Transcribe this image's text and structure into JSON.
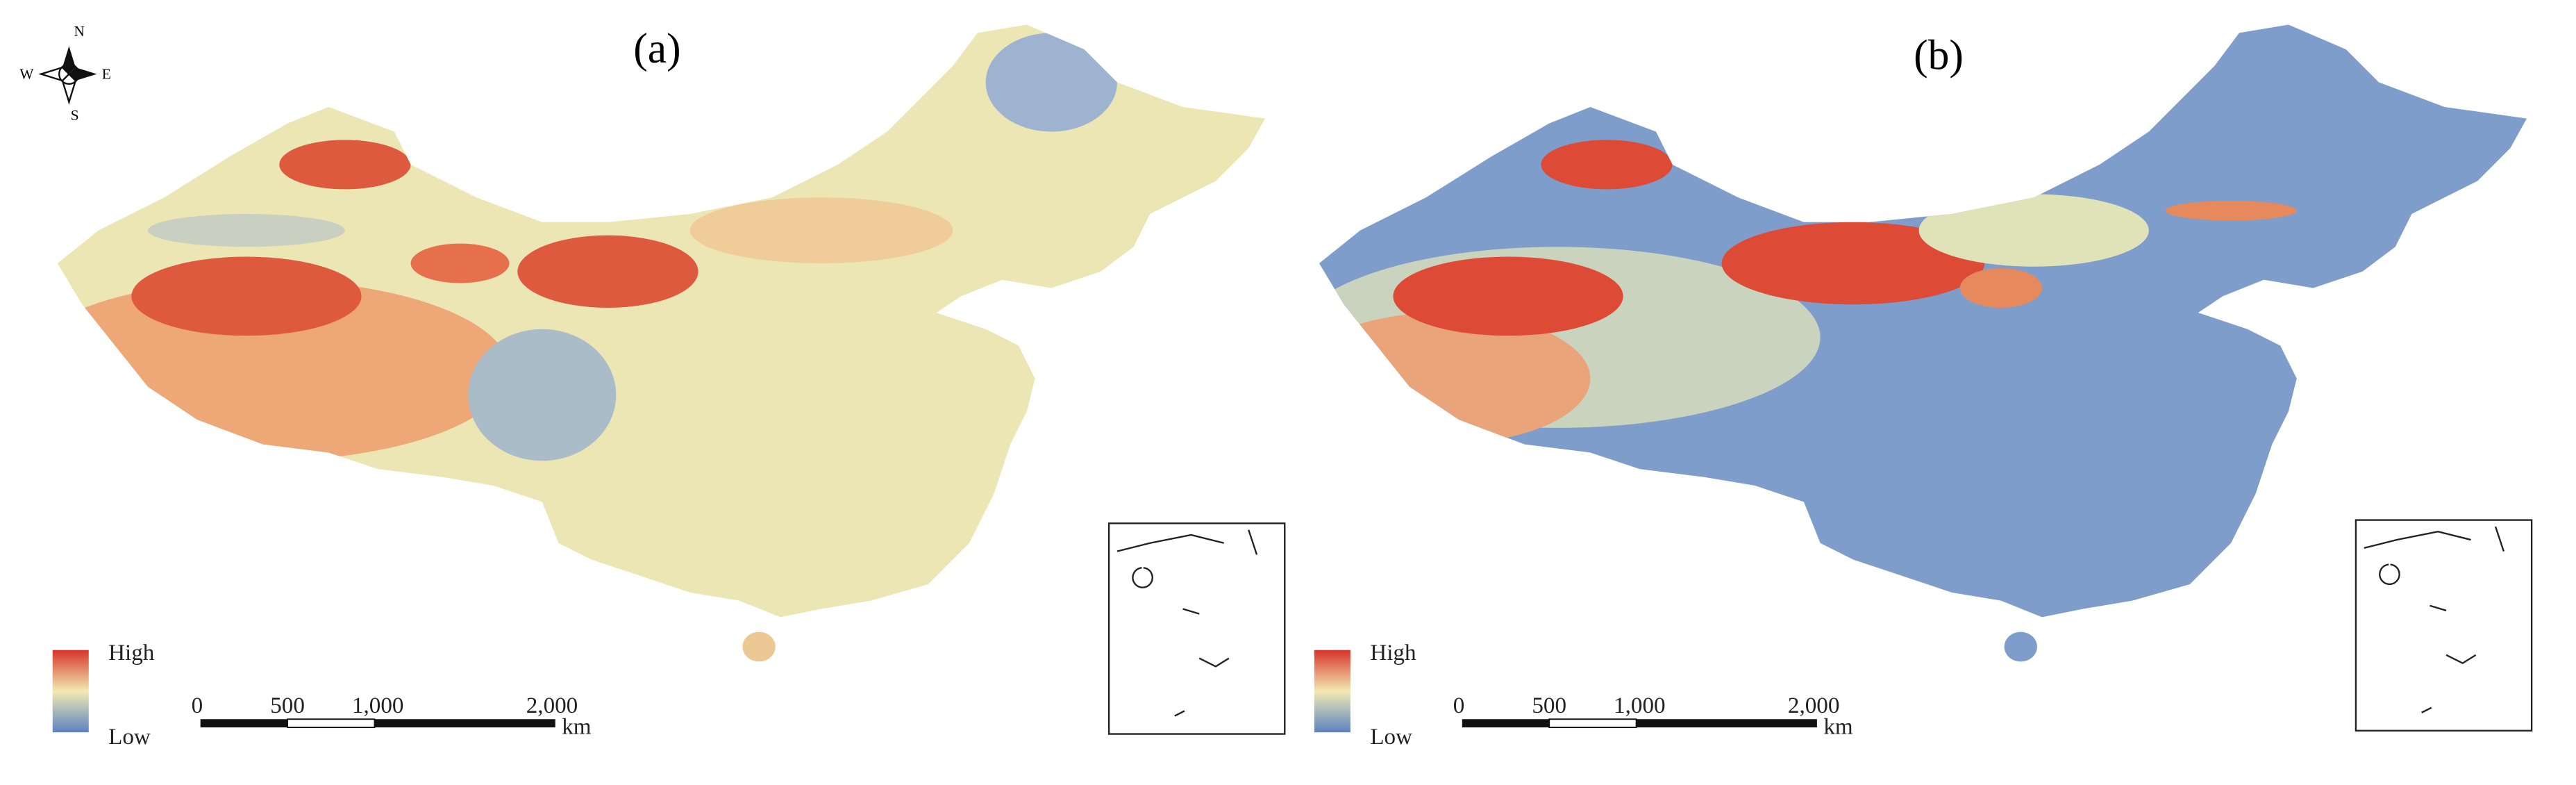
{
  "compass": {
    "north": "N",
    "south": "S",
    "east": "E",
    "west": "W"
  },
  "panels": [
    {
      "label": "(a)",
      "legend": {
        "high": "High",
        "low": "Low"
      },
      "scale_bar": {
        "labels": [
          "0",
          "500",
          "1,000",
          "2,000"
        ],
        "unit": "km"
      }
    },
    {
      "label": "(b)",
      "legend": {
        "high": "High",
        "low": "Low"
      },
      "scale_bar": {
        "labels": [
          "0",
          "500",
          "1,000",
          "2,000"
        ],
        "unit": "km"
      }
    }
  ]
}
